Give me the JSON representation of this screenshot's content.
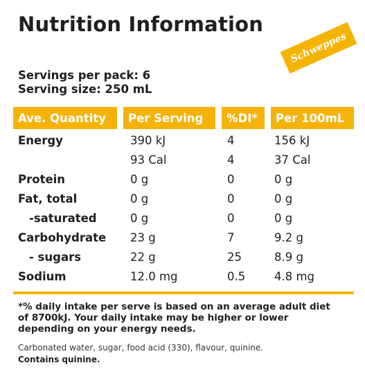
{
  "title": "Nutrition Information",
  "brand": {
    "logo_text": "Schweppes",
    "color": "#f5b301"
  },
  "serving": {
    "per_pack": "Servings per pack: 6",
    "size": "Serving size: 250 mL"
  },
  "table": {
    "headers": [
      "Ave. Quantity",
      "Per Serving",
      "%DI*",
      "Per 100mL"
    ],
    "rows": [
      {
        "name": "Energy",
        "per_serving": "390 kJ",
        "di": "4",
        "per_100ml": "156 kJ"
      },
      {
        "name": "",
        "per_serving": "93 Cal",
        "di": "4",
        "per_100ml": "37 Cal"
      },
      {
        "name": "Protein",
        "per_serving": "0 g",
        "di": "0",
        "per_100ml": "0 g"
      },
      {
        "name": "Fat, total",
        "per_serving": "0 g",
        "di": "0",
        "per_100ml": "0 g"
      },
      {
        "name": "-saturated",
        "per_serving": "0 g",
        "di": "0",
        "per_100ml": "0 g"
      },
      {
        "name": "Carbohydrate",
        "per_serving": "23 g",
        "di": "7",
        "per_100ml": "9.2 g"
      },
      {
        "name": "- sugars",
        "per_serving": "22 g",
        "di": "25",
        "per_100ml": "8.9 g"
      },
      {
        "name": "Sodium",
        "per_serving": "12.0 mg",
        "di": "0.5",
        "per_100ml": "4.8 mg"
      }
    ]
  },
  "footnote": "*% daily intake per serve is based on an average adult diet of 8700kJ. Your daily intake may be higher or lower depending on your energy needs.",
  "ingredients": "Carbonated water, sugar, food acid (330), flavour, quinine.",
  "contains": "Contains quinine."
}
